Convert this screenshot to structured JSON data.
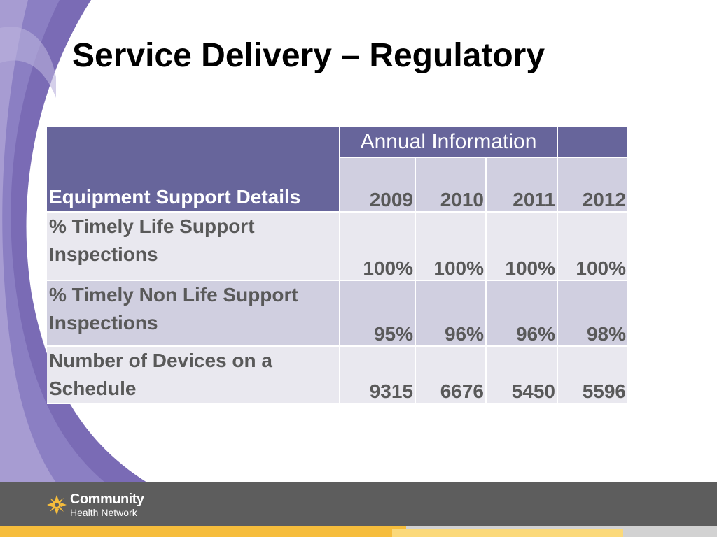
{
  "slide": {
    "title": "Service Delivery – Regulatory"
  },
  "table": {
    "row_header_label": "Equipment Support Details",
    "group_header": "Annual Information",
    "years": [
      "2009",
      "2010",
      "2011",
      "2012"
    ],
    "rows": [
      {
        "label": "% Timely Life Support Inspections",
        "values": [
          "100%",
          "100%",
          "100%",
          "100%"
        ]
      },
      {
        "label": "% Timely Non Life Support Inspections",
        "values": [
          "95%",
          "96%",
          "96%",
          "98%"
        ]
      },
      {
        "label": "Number of Devices on a Schedule",
        "values": [
          "9315",
          "6676",
          "5450",
          "5596"
        ]
      }
    ]
  },
  "footer": {
    "logo_line1": "Community",
    "logo_line2": "Health Network"
  },
  "colors": {
    "header_purple": "#67659b",
    "row_light": "#e9e8ef",
    "row_dark": "#d0cfe0",
    "footer_gray": "#5d5d5d",
    "accent_yellow": "#f6bd3c"
  }
}
